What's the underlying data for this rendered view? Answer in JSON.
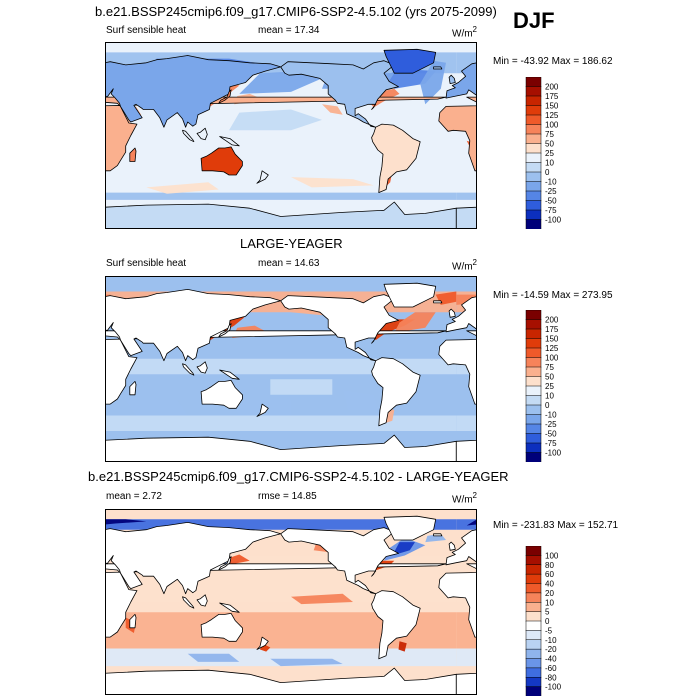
{
  "season": "DJF",
  "units_base": "W/m",
  "units_exp": "2",
  "chart_data": [
    {
      "type": "heatmap",
      "title": "b.e21.BSSP245cmip6.f09_g17.CMIP6-SSP2-4.5.102 (yrs 2075-2099)",
      "variable": "Surf sensible heat",
      "stat_label": "mean =  17.34",
      "mean": 17.34,
      "min": -43.92,
      "max": 186.62,
      "minmax_label": "Min = -43.92 Max = 186.62",
      "levels": [
        "200",
        "175",
        "150",
        "125",
        "100",
        "75",
        "50",
        "25",
        "10",
        "0",
        "-10",
        "-25",
        "-50",
        "-75",
        "-100"
      ],
      "colors": [
        "#7a0000",
        "#a60f00",
        "#c82500",
        "#e03c0a",
        "#ef5a2a",
        "#f6835a",
        "#fab08e",
        "#fde0cc",
        "#eaf2fb",
        "#c4dbf4",
        "#9cc0ee",
        "#7aa6ea",
        "#5585e6",
        "#2f5ddc",
        "#0c2fbe",
        "#00007a"
      ]
    },
    {
      "type": "heatmap",
      "title": "LARGE-YEAGER",
      "variable": "Surf sensible heat",
      "stat_label": "mean =  14.63",
      "mean": 14.63,
      "min": -14.59,
      "max": 273.95,
      "minmax_label": "Min = -14.59 Max = 273.95",
      "levels": [
        "200",
        "175",
        "150",
        "125",
        "100",
        "75",
        "50",
        "25",
        "10",
        "0",
        "-10",
        "-25",
        "-50",
        "-75",
        "-100"
      ],
      "colors": [
        "#7a0000",
        "#a60f00",
        "#c82500",
        "#e03c0a",
        "#ef5a2a",
        "#f6835a",
        "#fab08e",
        "#fde0cc",
        "#eaf2fb",
        "#c4dbf4",
        "#9cc0ee",
        "#7aa6ea",
        "#5585e6",
        "#2f5ddc",
        "#0c2fbe",
        "#00007a"
      ]
    },
    {
      "type": "heatmap",
      "title": "b.e21.BSSP245cmip6.f09_g17.CMIP6-SSP2-4.5.102 - LARGE-YEAGER",
      "stat_label": "mean =    2.72",
      "rmse_label": "rmse =  14.85",
      "mean": 2.72,
      "rmse": 14.85,
      "min": -231.83,
      "max": 152.71,
      "minmax_label": "Min = -231.83 Max = 152.71",
      "levels": [
        "100",
        "80",
        "60",
        "40",
        "20",
        "10",
        "5",
        "0",
        "-5",
        "-10",
        "-20",
        "-40",
        "-60",
        "-80",
        "-100"
      ],
      "colors": [
        "#7a0000",
        "#a60f00",
        "#c82500",
        "#e03c0a",
        "#ef5a2a",
        "#f6835a",
        "#fab08e",
        "#fde0cc",
        "#ffffff",
        "#dde9f8",
        "#b9d2f2",
        "#8fb4ec",
        "#6a95e8",
        "#3f6de0",
        "#1438c4",
        "#00007a"
      ]
    }
  ]
}
